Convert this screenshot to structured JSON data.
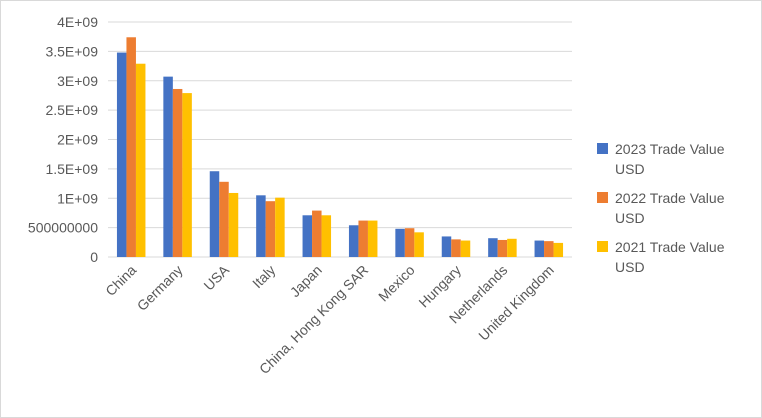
{
  "chart_data": {
    "type": "bar",
    "title": "",
    "xlabel": "",
    "ylabel": "",
    "ylim": [
      0,
      4000000000
    ],
    "yticks": [
      0,
      500000000,
      1000000000,
      1500000000,
      2000000000,
      2500000000,
      3000000000,
      3500000000,
      4000000000
    ],
    "ytick_labels": [
      "0",
      "500000000",
      "1E+09",
      "1.5E+09",
      "2E+09",
      "2.5E+09",
      "3E+09",
      "3.5E+09",
      "4E+09"
    ],
    "grid": true,
    "legend_position": "right",
    "categories": [
      "China",
      "Germany",
      "USA",
      "Italy",
      "Japan",
      "China, Hong Kong SAR",
      "Mexico",
      "Hungary",
      "Netherlands",
      "United Kingdom"
    ],
    "series": [
      {
        "name_line1": "2023 Trade Value",
        "name_line2": "USD",
        "color": "#4472C4",
        "values": [
          3480000000,
          3070000000,
          1460000000,
          1050000000,
          710000000,
          540000000,
          480000000,
          350000000,
          320000000,
          280000000
        ]
      },
      {
        "name_line1": "2022 Trade Value",
        "name_line2": "USD",
        "color": "#ED7D31",
        "values": [
          3740000000,
          2860000000,
          1280000000,
          950000000,
          790000000,
          620000000,
          490000000,
          300000000,
          290000000,
          270000000
        ]
      },
      {
        "name_line1": "2021 Trade Value",
        "name_line2": "USD",
        "color": "#FFC000",
        "values": [
          3290000000,
          2790000000,
          1090000000,
          1010000000,
          710000000,
          620000000,
          420000000,
          280000000,
          310000000,
          240000000
        ]
      }
    ]
  }
}
